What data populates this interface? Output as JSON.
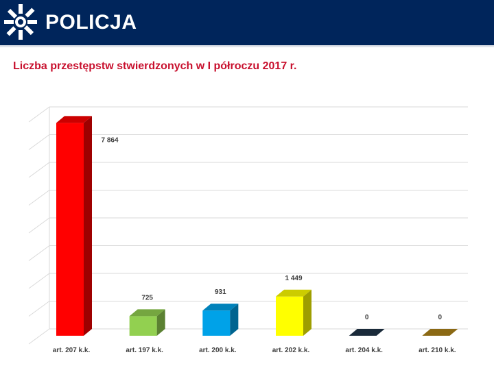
{
  "header": {
    "brand": "POLICJA",
    "background_color": "#00255b",
    "logo_icon": "police-star-icon"
  },
  "title": "Liczba przestępstw stwierdzonych w I półroczu 2017 r.",
  "chart_data": {
    "type": "bar",
    "style": "3d",
    "categories": [
      "art. 207 k.k.",
      "art. 197 k.k.",
      "art. 200 k.k.",
      "art. 202 k.k.",
      "art. 204 k.k.",
      "art. 210 k.k."
    ],
    "values": [
      7864,
      725,
      931,
      1449,
      0,
      0
    ],
    "value_labels": [
      "7 864",
      "725",
      "931",
      "1 449",
      "0",
      "0"
    ],
    "colors": [
      "#ff0000",
      "#92d050",
      "#00a2e8",
      "#ffff00",
      "#1a2a3a",
      "#8b6914"
    ],
    "ylim": [
      0,
      8000
    ],
    "grid": true,
    "legend": "none"
  }
}
